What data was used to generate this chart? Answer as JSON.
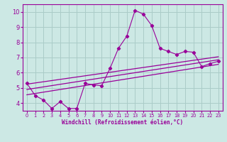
{
  "xlabel": "Windchill (Refroidissement éolien,°C)",
  "ylabel": "",
  "bg_color": "#cce8e4",
  "grid_color": "#aaccc8",
  "line_color": "#990099",
  "xlim": [
    -0.5,
    23.5
  ],
  "ylim": [
    3.5,
    10.5
  ],
  "xticks": [
    0,
    1,
    2,
    3,
    4,
    5,
    6,
    7,
    8,
    9,
    10,
    11,
    12,
    13,
    14,
    15,
    16,
    17,
    18,
    19,
    20,
    21,
    22,
    23
  ],
  "yticks": [
    4,
    5,
    6,
    7,
    8,
    9,
    10
  ],
  "scatter_x": [
    0,
    1,
    2,
    3,
    4,
    5,
    6,
    7,
    8,
    9,
    10,
    11,
    12,
    13,
    14,
    15,
    16,
    17,
    18,
    19,
    20,
    21,
    22,
    23
  ],
  "scatter_y": [
    5.3,
    4.5,
    4.2,
    3.65,
    4.1,
    3.65,
    3.65,
    5.3,
    5.2,
    5.15,
    6.3,
    7.6,
    8.4,
    10.1,
    9.85,
    9.1,
    7.6,
    7.4,
    7.2,
    7.4,
    7.35,
    6.4,
    6.6,
    6.75
  ],
  "reg_line1": {
    "x": [
      0,
      23
    ],
    "y": [
      4.9,
      6.85
    ]
  },
  "reg_line2": {
    "x": [
      0,
      23
    ],
    "y": [
      5.25,
      7.05
    ]
  },
  "reg_line3": {
    "x": [
      0,
      23
    ],
    "y": [
      4.55,
      6.55
    ]
  }
}
